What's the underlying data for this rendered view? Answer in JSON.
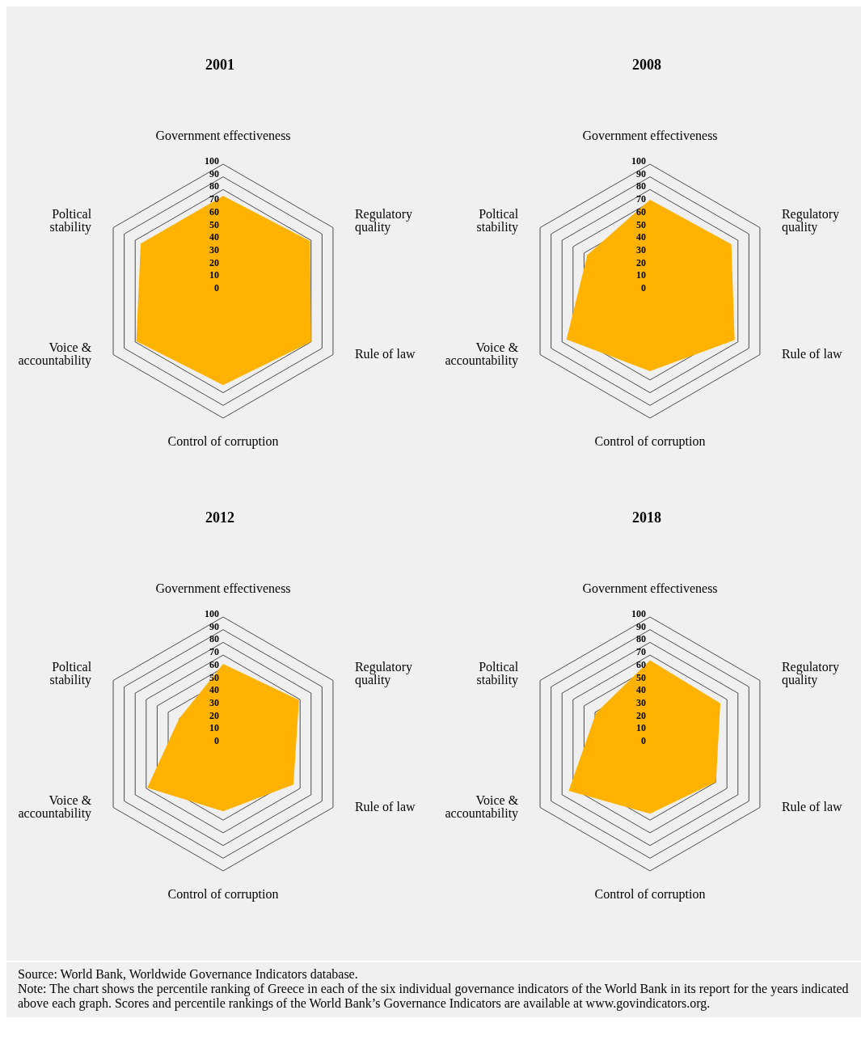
{
  "chart_data": [
    {
      "type": "radar",
      "title": "2001",
      "categories": [
        "Government effectiveness",
        "Regulatory quality",
        "Rule of law",
        "Control of corruption",
        "Voice & accountability",
        "Poltical stability"
      ],
      "series": [
        {
          "color": "#ffb300",
          "values": [
            75,
            79,
            80,
            74,
            79,
            75
          ]
        }
      ],
      "ylim": [
        0,
        100
      ],
      "yticks": [
        0,
        10,
        20,
        30,
        40,
        50,
        60,
        70,
        80,
        90,
        100
      ],
      "grid": true
    },
    {
      "type": "radar",
      "title": "2008",
      "categories": [
        "Government effectiveness",
        "Regulatory quality",
        "Rule of law",
        "Control of corruption",
        "Voice & accountability",
        "Poltical stability"
      ],
      "series": [
        {
          "color": "#ffb300",
          "values": [
            72,
            74,
            77,
            63,
            76,
            57
          ]
        }
      ],
      "ylim": [
        0,
        100
      ],
      "yticks": [
        0,
        10,
        20,
        30,
        40,
        50,
        60,
        70,
        80,
        90,
        100
      ],
      "grid": true
    },
    {
      "type": "radar",
      "title": "2012",
      "categories": [
        "Government effectiveness",
        "Regulatory quality",
        "Rule of law",
        "Control of corruption",
        "Voice & accountability",
        "Poltical stability"
      ],
      "series": [
        {
          "color": "#ffb300",
          "values": [
            63,
            69,
            64,
            53,
            69,
            40
          ]
        }
      ],
      "ylim": [
        0,
        100
      ],
      "yticks": [
        0,
        10,
        20,
        30,
        40,
        50,
        60,
        70,
        80,
        90,
        100
      ],
      "grid": true
    },
    {
      "type": "radar",
      "title": "2018",
      "categories": [
        "Government effectiveness",
        "Regulatory quality",
        "Rule of law",
        "Control of corruption",
        "Voice & accountability",
        "Poltical stability"
      ],
      "series": [
        {
          "color": "#ffb300",
          "values": [
            66,
            64,
            60,
            55,
            74,
            49
          ]
        }
      ],
      "ylim": [
        0,
        100
      ],
      "yticks": [
        0,
        10,
        20,
        30,
        40,
        50,
        60,
        70,
        80,
        90,
        100
      ],
      "grid": true,
      "annotations": [
        "Source: World Bank, Worldwide Governance Indicators database.",
        "Note: The chart shows the percentile ranking of Greece in each of the six individual governance indicators of the World Bank in its report for the years indicated above each graph. Scores and percentile rankings of the World Bank’s Governance Indicators are available at www.govindicators.org."
      ]
    }
  ]
}
